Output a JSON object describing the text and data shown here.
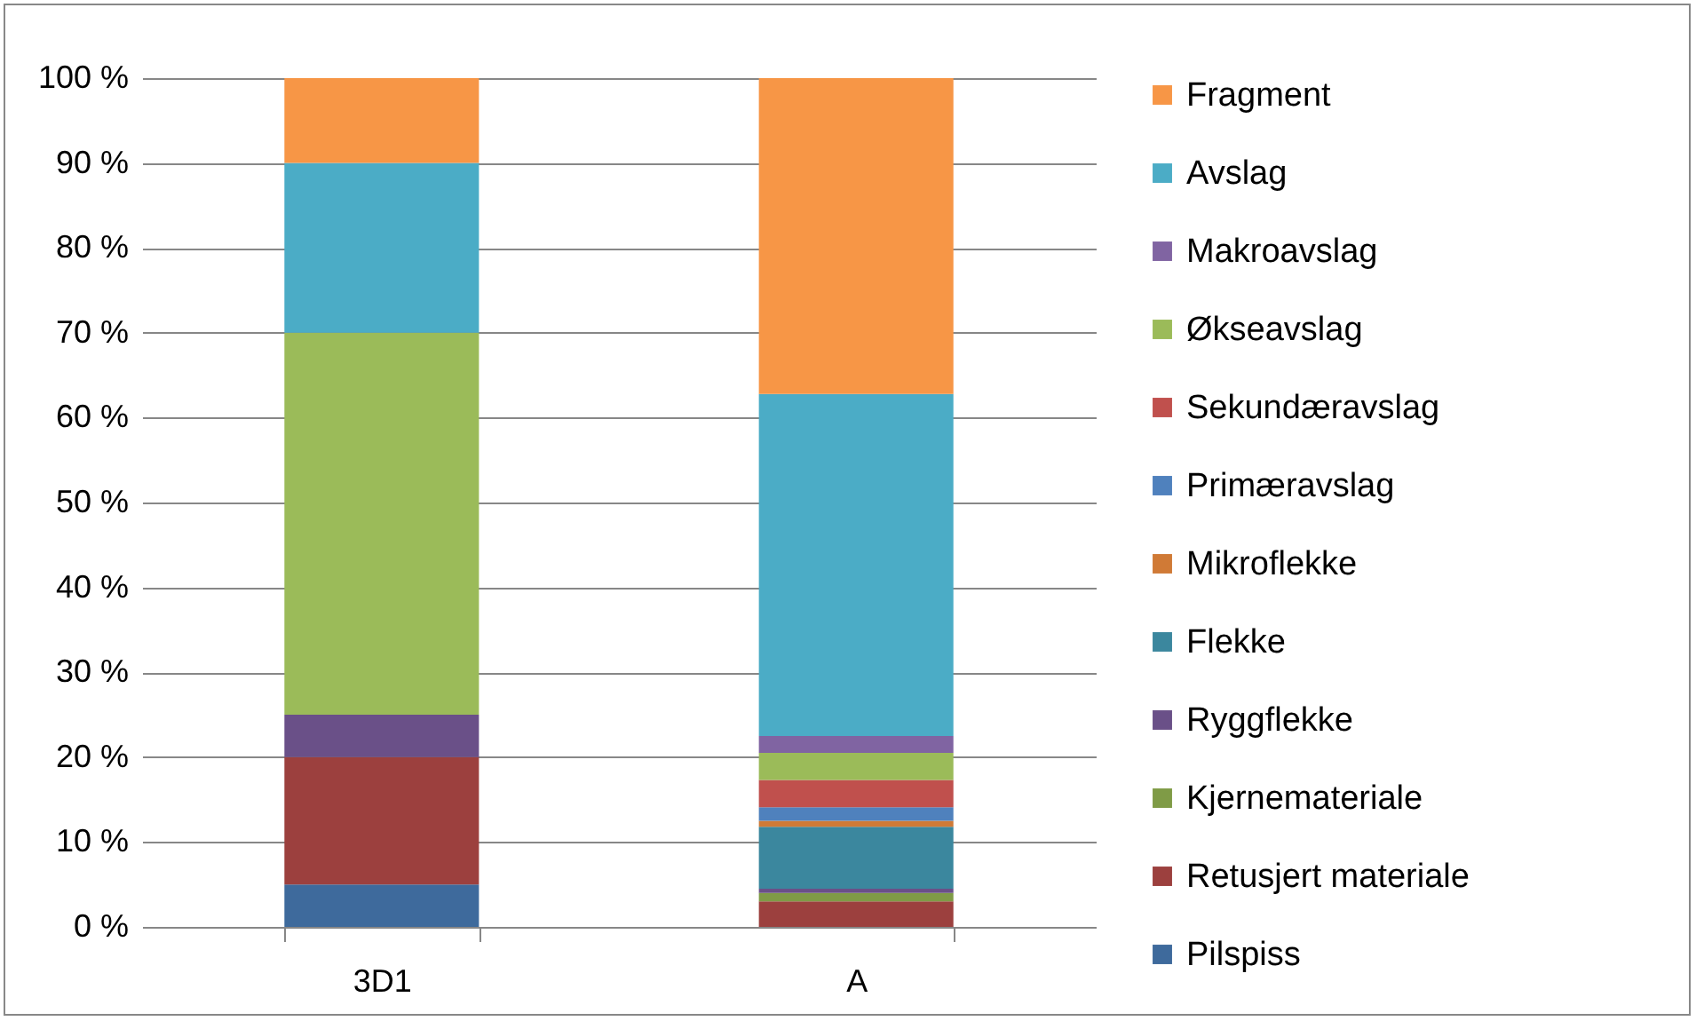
{
  "chart_data": {
    "type": "bar",
    "stacked": true,
    "categories": [
      "3D1",
      "A"
    ],
    "series": [
      {
        "name": "Pilspiss",
        "color": "#3e6a9c",
        "values": [
          5,
          0
        ]
      },
      {
        "name": "Retusjert materiale",
        "color": "#9c403e",
        "values": [
          15,
          3.0
        ]
      },
      {
        "name": "Kjernemateriale",
        "color": "#7f9b46",
        "values": [
          0,
          1.0
        ]
      },
      {
        "name": "Ryggflekke",
        "color": "#6a5088",
        "values": [
          5,
          0.5
        ]
      },
      {
        "name": "Flekke",
        "color": "#3b879e",
        "values": [
          0,
          7.3
        ]
      },
      {
        "name": "Mikroflekke",
        "color": "#d07a36",
        "values": [
          0,
          0.7
        ]
      },
      {
        "name": "Primæravslag",
        "color": "#4f81bd",
        "values": [
          0,
          1.6
        ]
      },
      {
        "name": "Sekundæravslag",
        "color": "#c0504d",
        "values": [
          0,
          3.2
        ]
      },
      {
        "name": "Økseavslag",
        "color": "#9bbb59",
        "values": [
          45,
          3.2
        ]
      },
      {
        "name": "Makroavslag",
        "color": "#8064a2",
        "values": [
          0,
          2.0
        ]
      },
      {
        "name": "Avslag",
        "color": "#4bacc6",
        "values": [
          20,
          40.3
        ]
      },
      {
        "name": "Fragment",
        "color": "#f79646",
        "values": [
          10,
          37.2
        ]
      }
    ],
    "ylim": [
      0,
      100
    ],
    "yticks": [
      {
        "value": 0,
        "label": "0 %"
      },
      {
        "value": 10,
        "label": "10 %"
      },
      {
        "value": 20,
        "label": "20 %"
      },
      {
        "value": 30,
        "label": "30 %"
      },
      {
        "value": 40,
        "label": "40 %"
      },
      {
        "value": 50,
        "label": "50 %"
      },
      {
        "value": 60,
        "label": "60 %"
      },
      {
        "value": 70,
        "label": "70 %"
      },
      {
        "value": 80,
        "label": "80 %"
      },
      {
        "value": 90,
        "label": "90 %"
      },
      {
        "value": 100,
        "label": "100 %"
      }
    ],
    "grid": "y",
    "legend": "right"
  }
}
